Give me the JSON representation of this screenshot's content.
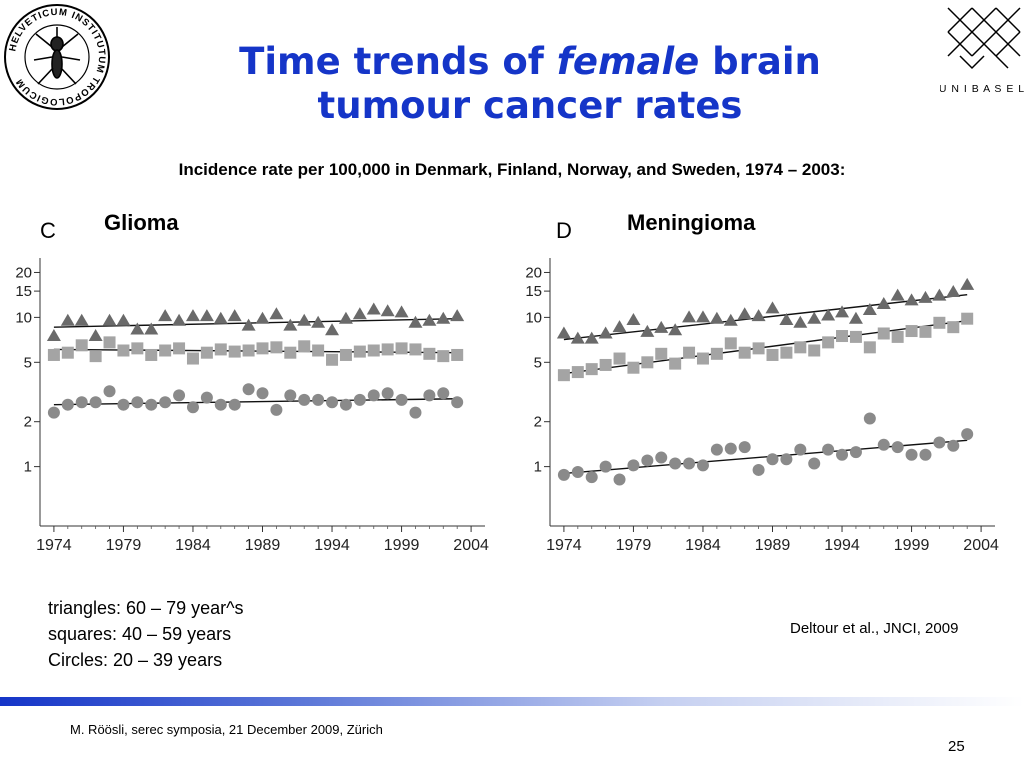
{
  "slide": {
    "title_part1": "Time trends of ",
    "title_italic": "female",
    "title_part2": " brain",
    "title_line2": "tumour cancer rates",
    "subtitle": "Incidence rate per 100,000 in Denmark, Finland, Norway, and Sweden, 1974 – 2003:",
    "legend": {
      "line1": "triangles: 60 – 79 year^s",
      "line2": "squares: 40 – 59 years",
      "line3": "Circles: 20 – 39 years"
    },
    "citation": "Deltour et al., JNCI, 2009",
    "footer": "M. Röösli, serec symposia, 21 December 2009, Zürich",
    "page_number": "25",
    "logos": {
      "left_logo_text": "HELVETICUM INSTITUTUM TROPOLOGICUM",
      "right_logo_text": "U N I B A S E L"
    }
  },
  "chart_data": [
    {
      "type": "scatter",
      "panel_letter": "C",
      "title": "Glioma",
      "xlabel": "",
      "ylabel": "",
      "y_scale": "log",
      "xlim": [
        1973,
        2005
      ],
      "ylim": [
        0.4,
        25
      ],
      "x_ticks": [
        1974,
        1979,
        1984,
        1989,
        1994,
        1999,
        2004
      ],
      "y_ticks": [
        1,
        2,
        5,
        10,
        15,
        20
      ],
      "x": [
        1974,
        1975,
        1976,
        1977,
        1978,
        1979,
        1980,
        1981,
        1982,
        1983,
        1984,
        1985,
        1986,
        1987,
        1988,
        1989,
        1990,
        1991,
        1992,
        1993,
        1994,
        1995,
        1996,
        1997,
        1998,
        1999,
        2000,
        2001,
        2002,
        2003
      ],
      "series": [
        {
          "marker": "triangle",
          "values": [
            7.5,
            9.5,
            9.5,
            7.5,
            9.5,
            9.5,
            8.3,
            8.3,
            10.2,
            9.5,
            10.2,
            10.2,
            9.8,
            10.2,
            8.8,
            9.8,
            10.5,
            8.8,
            9.5,
            9.2,
            8.2,
            9.8,
            10.5,
            11.3,
            11.0,
            10.8,
            9.2,
            9.5,
            9.8,
            10.2
          ],
          "trend": [
            8.6,
            9.8
          ]
        },
        {
          "marker": "square",
          "values": [
            5.6,
            5.8,
            6.5,
            5.5,
            6.8,
            6.0,
            6.2,
            5.6,
            6.0,
            6.2,
            5.3,
            5.8,
            6.1,
            5.9,
            6.0,
            6.2,
            6.3,
            5.8,
            6.4,
            6.0,
            5.2,
            5.6,
            5.9,
            6.0,
            6.1,
            6.2,
            6.1,
            5.7,
            5.5,
            5.6
          ],
          "trend": [
            6.1,
            5.8
          ]
        },
        {
          "marker": "circle",
          "values": [
            2.3,
            2.6,
            2.7,
            2.7,
            3.2,
            2.6,
            2.7,
            2.6,
            2.7,
            3.0,
            2.5,
            2.9,
            2.6,
            2.6,
            3.3,
            3.1,
            2.4,
            3.0,
            2.8,
            2.8,
            2.7,
            2.6,
            2.8,
            3.0,
            3.1,
            2.8,
            2.3,
            3.0,
            3.1,
            2.7
          ],
          "trend": [
            2.6,
            2.85
          ]
        }
      ]
    },
    {
      "type": "scatter",
      "panel_letter": "D",
      "title": "Meningioma",
      "xlabel": "",
      "ylabel": "",
      "y_scale": "log",
      "xlim": [
        1973,
        2005
      ],
      "ylim": [
        0.4,
        25
      ],
      "x_ticks": [
        1974,
        1979,
        1984,
        1989,
        1994,
        1999,
        2004
      ],
      "y_ticks": [
        1,
        2,
        5,
        10,
        15,
        20
      ],
      "x": [
        1974,
        1975,
        1976,
        1977,
        1978,
        1979,
        1980,
        1981,
        1982,
        1983,
        1984,
        1985,
        1986,
        1987,
        1988,
        1989,
        1990,
        1991,
        1992,
        1993,
        1994,
        1995,
        1996,
        1997,
        1998,
        1999,
        2000,
        2001,
        2002,
        2003
      ],
      "series": [
        {
          "marker": "triangle",
          "values": [
            7.8,
            7.2,
            7.2,
            7.8,
            8.6,
            9.6,
            8.0,
            8.5,
            8.2,
            10.0,
            10.0,
            9.8,
            9.5,
            10.5,
            10.2,
            11.5,
            9.6,
            9.2,
            9.8,
            10.3,
            10.8,
            9.8,
            11.2,
            12.3,
            14.0,
            13.0,
            13.5,
            14.0,
            14.8,
            16.5
          ],
          "trend": [
            7.1,
            14.2
          ]
        },
        {
          "marker": "square",
          "values": [
            4.1,
            4.3,
            4.5,
            4.8,
            5.3,
            4.6,
            5.0,
            5.7,
            4.9,
            5.8,
            5.3,
            5.7,
            6.7,
            5.8,
            6.2,
            5.6,
            5.8,
            6.3,
            6.0,
            6.8,
            7.5,
            7.4,
            6.3,
            7.8,
            7.4,
            8.1,
            8.0,
            9.2,
            8.6,
            9.8
          ],
          "trend": [
            4.2,
            9.5
          ]
        },
        {
          "marker": "circle",
          "values": [
            0.88,
            0.92,
            0.85,
            1.0,
            0.82,
            1.02,
            1.1,
            1.15,
            1.05,
            1.05,
            1.02,
            1.3,
            1.32,
            1.35,
            0.95,
            1.12,
            1.12,
            1.3,
            1.05,
            1.3,
            1.2,
            1.25,
            2.1,
            1.4,
            1.35,
            1.2,
            1.2,
            1.45,
            1.38,
            1.65
          ],
          "trend": [
            0.9,
            1.5
          ]
        }
      ]
    }
  ]
}
